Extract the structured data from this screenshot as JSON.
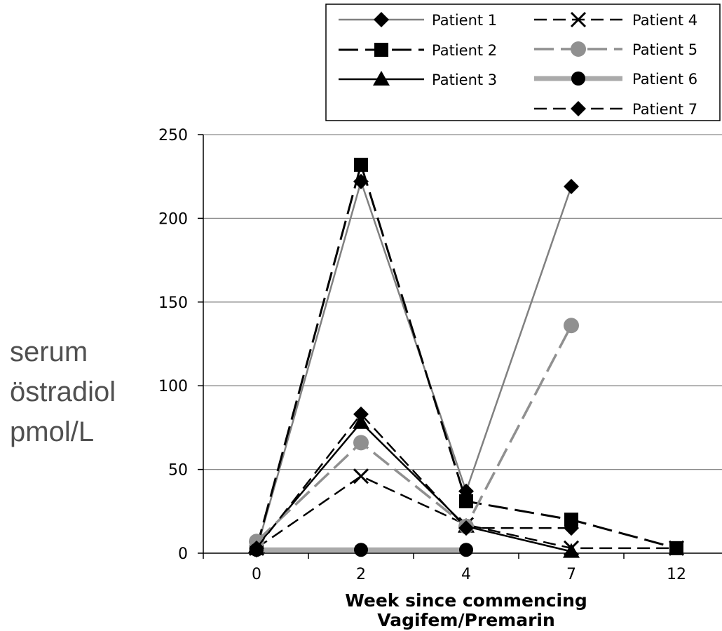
{
  "chart_data": {
    "type": "line",
    "xlabel_lines": [
      "Week since commencing",
      "Vagifem/Premarin"
    ],
    "ylabel_lines": [
      "serum",
      "östradiol",
      "pmol/L"
    ],
    "categories": [
      "0",
      "2",
      "4",
      "7",
      "12"
    ],
    "ylim": [
      0,
      250
    ],
    "yticks": [
      0,
      50,
      100,
      150,
      200,
      250
    ],
    "grid": true,
    "legend_position": "top-right",
    "series": [
      {
        "name": "Patient 1",
        "values": [
          2,
          222,
          37,
          219,
          null
        ],
        "color": "#808080",
        "marker": "diamond",
        "dash": "solid",
        "line_width": 2.5
      },
      {
        "name": "Patient 2",
        "values": [
          3,
          232,
          31,
          20,
          3
        ],
        "color": "#000000",
        "marker": "square",
        "dash": "long-dash",
        "line_width": 3
      },
      {
        "name": "Patient 3",
        "values": [
          4,
          78,
          16,
          1,
          null
        ],
        "color": "#000000",
        "marker": "triangle",
        "dash": "solid",
        "line_width": 2.5
      },
      {
        "name": "Patient 4",
        "values": [
          3,
          46,
          17,
          3,
          3
        ],
        "color": "#000000",
        "marker": "x",
        "dash": "dash",
        "line_width": 2.5
      },
      {
        "name": "Patient 5",
        "values": [
          7,
          66,
          16,
          136,
          null
        ],
        "color": "#909090",
        "marker": "circle",
        "dash": "long-dash",
        "line_width": 3.5
      },
      {
        "name": "Patient 6",
        "values": [
          2,
          2,
          2,
          null,
          null
        ],
        "color": "#aaaaaa",
        "marker": "circle-black",
        "dash": "solid",
        "line_width": 7
      },
      {
        "name": "Patient 7",
        "values": [
          3,
          83,
          15,
          15,
          null
        ],
        "color": "#000000",
        "marker": "diamond",
        "dash": "dash",
        "line_width": 2.5
      }
    ]
  }
}
